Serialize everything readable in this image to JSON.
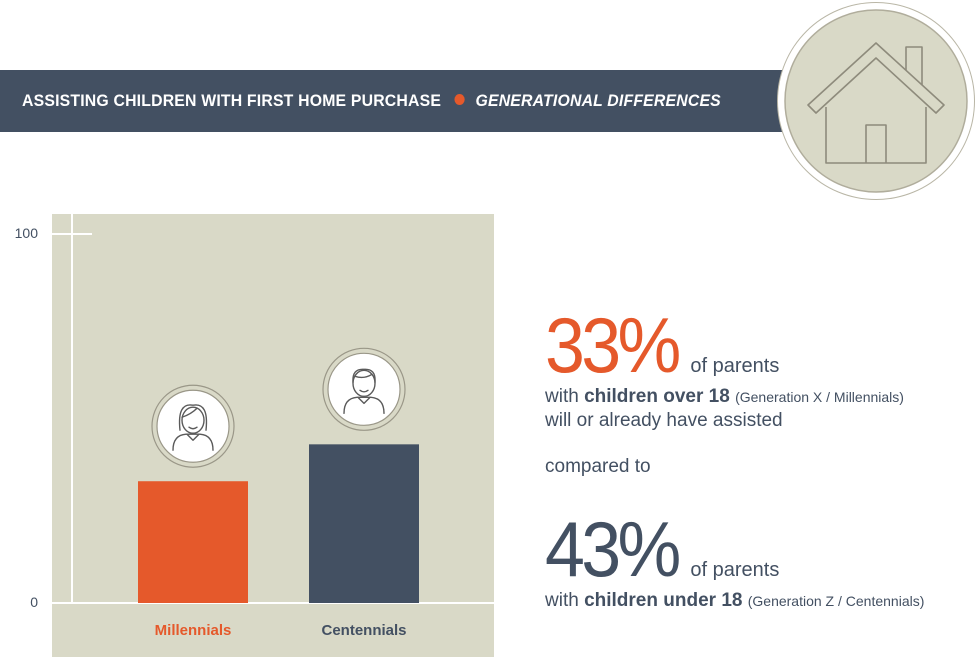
{
  "banner": {
    "title": "ASSISTING CHILDREN WITH FIRST HOME PURCHASE",
    "subtitle": "GENERATIONAL DIFFERENCES"
  },
  "chart_data": {
    "type": "bar",
    "categories": [
      "Millennials",
      "Centennials"
    ],
    "values": [
      33,
      43
    ],
    "ylim": [
      0,
      100
    ],
    "yticks": [
      "0",
      "100"
    ],
    "grid": false,
    "colors": {
      "Millennials": "#e5592b",
      "Centennials": "#435062"
    },
    "icons": [
      "girl-avatar-icon",
      "boy-avatar-icon"
    ]
  },
  "stats": {
    "first": {
      "percent": "33%",
      "suffix": "of parents",
      "line2_prefix": "with ",
      "line2_bold": "children over 18",
      "line2_note": "(Generation X / Millennials)",
      "line3": "will or already have assisted"
    },
    "compared": "compared to",
    "second": {
      "percent": "43%",
      "suffix": "of parents",
      "line2_prefix": "with ",
      "line2_bold": "children under 18",
      "line2_note": "(Generation Z / Centennials)"
    }
  },
  "colors": {
    "accent": "#e5592b",
    "navy": "#435062",
    "panel": "#d9d9c7"
  }
}
